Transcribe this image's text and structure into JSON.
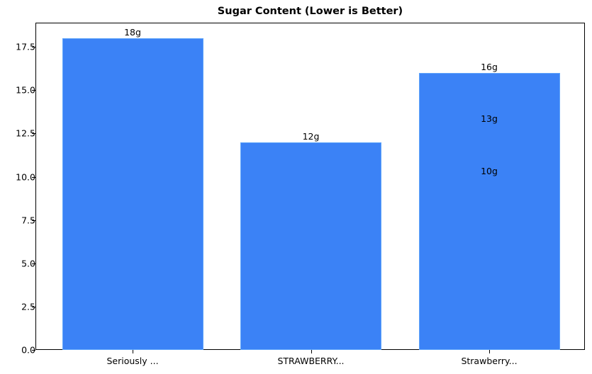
{
  "chart_data": {
    "type": "bar",
    "title": "Sugar Content (Lower is Better)",
    "xlabel": "",
    "ylabel": "",
    "categories": [
      "Seriously ...",
      "STRAWBERRY...",
      "Strawberry..."
    ],
    "values": [
      18,
      12,
      16
    ],
    "bar_labels": [
      "18g",
      "12g",
      "16g"
    ],
    "extra_annotations": [
      {
        "category": "Strawberry...",
        "text": "13g",
        "y": 13
      },
      {
        "category": "Strawberry...",
        "text": "10g",
        "y": 10
      }
    ],
    "ylim": [
      0,
      18.9
    ],
    "yticks": [
      "0.0",
      "2.5",
      "5.0",
      "7.5",
      "10.0",
      "12.5",
      "15.0",
      "17.5"
    ],
    "grid": false,
    "legend": null,
    "bar_color": "#3b82f6"
  }
}
